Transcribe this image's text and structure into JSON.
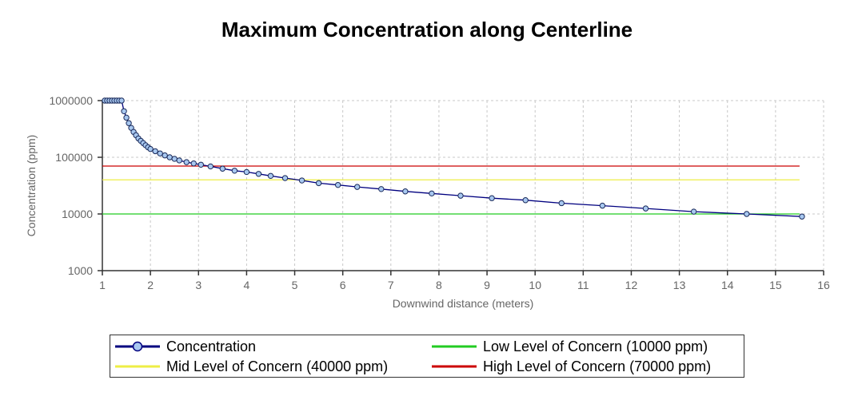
{
  "chart_data": {
    "type": "line",
    "title": "Maximum Concentration along Centerline",
    "xlabel": "Downwind distance (meters)",
    "ylabel": "Concentration (ppm)",
    "xlim": [
      1,
      16
    ],
    "ylim": [
      1000,
      1000000
    ],
    "yscale": "log",
    "grid": true,
    "legend_position": "bottom",
    "x_ticks": [
      "1",
      "2",
      "3",
      "4",
      "5",
      "6",
      "7",
      "8",
      "9",
      "10",
      "11",
      "12",
      "13",
      "14",
      "15",
      "16"
    ],
    "y_ticks": [
      "1000",
      "10000",
      "100000",
      "1000000"
    ],
    "series": [
      {
        "name": "Concentration",
        "color": "#00007f",
        "marker": "circle",
        "marker_color": "#a8c8f0",
        "x": [
          1.05,
          1.1,
          1.15,
          1.2,
          1.25,
          1.3,
          1.35,
          1.4,
          1.45,
          1.5,
          1.55,
          1.6,
          1.65,
          1.7,
          1.75,
          1.8,
          1.85,
          1.9,
          1.95,
          2.0,
          2.1,
          2.2,
          2.3,
          2.4,
          2.5,
          2.6,
          2.75,
          2.9,
          3.05,
          3.25,
          3.5,
          3.75,
          4.0,
          4.25,
          4.5,
          4.8,
          5.15,
          5.5,
          5.9,
          6.3,
          6.8,
          7.3,
          7.85,
          8.45,
          9.1,
          9.8,
          10.55,
          11.4,
          12.3,
          13.3,
          14.4,
          15.55
        ],
        "y": [
          1000000,
          1000000,
          1000000,
          1000000,
          1000000,
          1000000,
          1000000,
          1000000,
          650000,
          500000,
          400000,
          330000,
          280000,
          245000,
          215000,
          195000,
          178000,
          163000,
          150000,
          140000,
          128000,
          117000,
          108000,
          100000,
          94000,
          88000,
          82000,
          78000,
          74000,
          69000,
          63000,
          58000,
          55000,
          51000,
          47000,
          43000,
          39000,
          35000,
          32500,
          30000,
          27500,
          25000,
          23000,
          21000,
          19000,
          17500,
          15500,
          14000,
          12500,
          11000,
          10000,
          9000
        ]
      },
      {
        "name": "Low Level of Concern (10000 ppm)",
        "color": "#22cc22",
        "y_value": 10000,
        "x_range": [
          1,
          15.5
        ]
      },
      {
        "name": "Mid Level of Concern (40000 ppm)",
        "color": "#eeee44",
        "y_value": 40000,
        "x_range": [
          1,
          15.5
        ]
      },
      {
        "name": "High Level of Concern (70000 ppm)",
        "color": "#cc0000",
        "y_value": 70000,
        "x_range": [
          1,
          15.5
        ]
      }
    ],
    "legend": [
      {
        "label": "Concentration",
        "color": "#00007f",
        "marker": true
      },
      {
        "label": "Low Level of Concern (10000 ppm)",
        "color": "#22cc22",
        "marker": false
      },
      {
        "label": "Mid Level of Concern (40000 ppm)",
        "color": "#eeee44",
        "marker": false
      },
      {
        "label": "High Level of Concern (70000 ppm)",
        "color": "#cc0000",
        "marker": false
      }
    ]
  }
}
